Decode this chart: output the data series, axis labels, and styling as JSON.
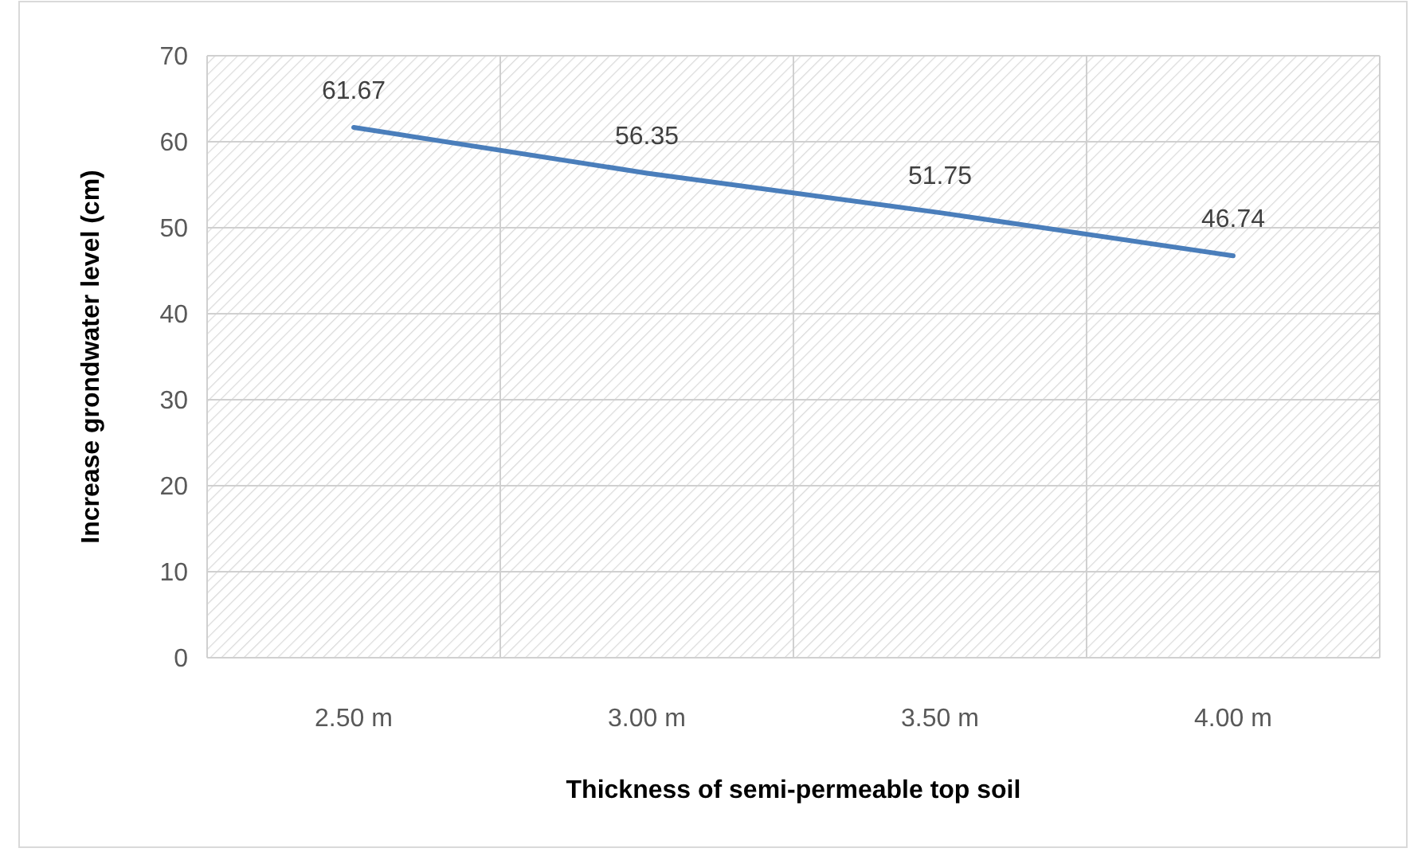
{
  "chart_data": {
    "type": "line",
    "xlabel": "Thickness of semi-permeable top soil",
    "ylabel": "Increase grondwater level (cm)",
    "categories": [
      "2.50 m",
      "3.00 m",
      "3.50 m",
      "4.00 m"
    ],
    "series": [
      {
        "color": "#4a7ebb",
        "values": [
          61.67,
          56.35,
          51.75,
          46.74
        ]
      }
    ],
    "ylim": [
      0,
      70
    ],
    "yticks": [
      0,
      10,
      20,
      30,
      40,
      50,
      60,
      70
    ],
    "grid": true,
    "data_labels": true,
    "marker": "none"
  }
}
